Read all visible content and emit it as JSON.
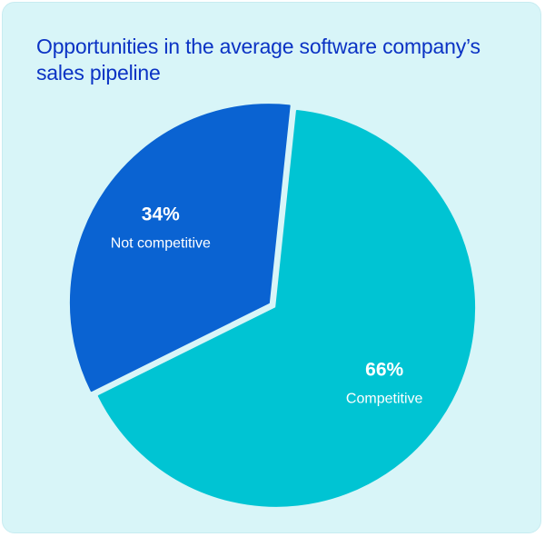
{
  "chart_data": {
    "type": "pie",
    "title": "Opportunities in the average software company’s sales pipeline",
    "categories": [
      "Competitive",
      "Not competitive"
    ],
    "values": [
      66,
      34
    ],
    "value_labels": [
      "66%",
      "34%"
    ],
    "colors": [
      "#00c4d3",
      "#0a63d2"
    ]
  },
  "colors": {
    "background": "#d8f5f8",
    "title": "#0b33c4",
    "label_text": "#ffffff"
  }
}
